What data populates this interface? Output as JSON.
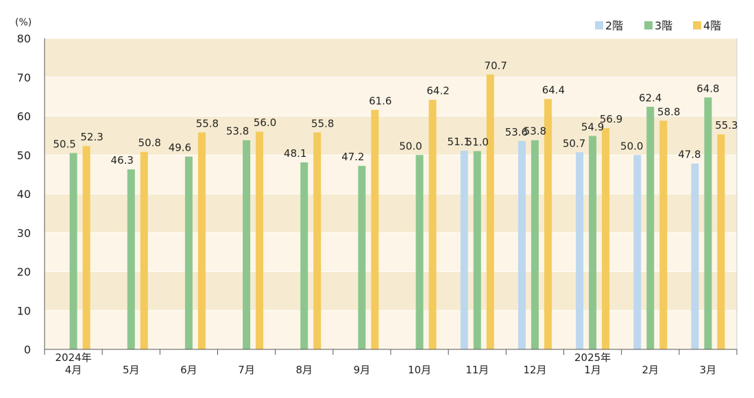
{
  "chart_data": {
    "type": "bar",
    "unit_label": "(%)",
    "ylim": [
      0,
      80
    ],
    "yticks": [
      0,
      10,
      20,
      30,
      40,
      50,
      60,
      70,
      80
    ],
    "categories": [
      {
        "year": "2024年",
        "month": "4月"
      },
      {
        "year": "",
        "month": "5月"
      },
      {
        "year": "",
        "month": "6月"
      },
      {
        "year": "",
        "month": "7月"
      },
      {
        "year": "",
        "month": "8月"
      },
      {
        "year": "",
        "month": "9月"
      },
      {
        "year": "",
        "month": "10月"
      },
      {
        "year": "",
        "month": "11月"
      },
      {
        "year": "",
        "month": "12月"
      },
      {
        "year": "2025年",
        "month": "1月"
      },
      {
        "year": "",
        "month": "2月"
      },
      {
        "year": "",
        "month": "3月"
      }
    ],
    "series": [
      {
        "name": "2階",
        "color": "#bdd7ee",
        "values": [
          null,
          null,
          null,
          null,
          null,
          null,
          null,
          51.1,
          53.6,
          50.7,
          50.0,
          47.8
        ],
        "labels": [
          "",
          "",
          "",
          "",
          "",
          "",
          "",
          "51.1",
          "53.6",
          "50.7",
          "50.0",
          "47.8"
        ]
      },
      {
        "name": "3階",
        "color": "#8cc68e",
        "values": [
          50.5,
          46.3,
          49.6,
          53.8,
          48.1,
          47.2,
          50.0,
          51.0,
          53.8,
          54.9,
          62.4,
          64.8
        ],
        "labels": [
          "50.5",
          "46.3",
          "49.6",
          "53.8",
          "48.1",
          "47.2",
          "50.0",
          "51.0",
          "53.8",
          "54.9",
          "62.4",
          "64.8"
        ]
      },
      {
        "name": "4階",
        "color": "#f4ca5c",
        "values": [
          52.3,
          50.8,
          55.8,
          56.0,
          55.8,
          61.6,
          64.2,
          70.7,
          64.4,
          56.9,
          58.8,
          55.3
        ],
        "labels": [
          "52.3",
          "50.8",
          "55.8",
          "56.0",
          "55.8",
          "61.6",
          "64.2",
          "70.7",
          "64.4",
          "56.9",
          "58.8",
          "55.3"
        ]
      }
    ],
    "band_colors": [
      "#fdf6e8",
      "#f6ebd0"
    ],
    "legend_position": "top-right"
  }
}
